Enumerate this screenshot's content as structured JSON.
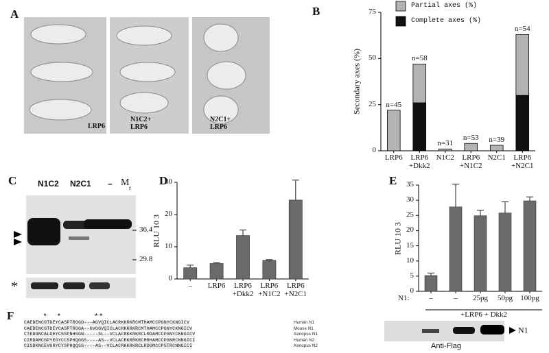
{
  "panel_letters": [
    "A",
    "B",
    "C",
    "D",
    "E",
    "F"
  ],
  "panel_a": {
    "labels": [
      "LRP6",
      "N1C2+\nLRP6",
      "N2C1+\nLRP6"
    ]
  },
  "panel_c": {
    "lanes": [
      "N1C2",
      "N2C1",
      "–"
    ],
    "marker_label": "M",
    "marker_subscript": "r",
    "markers": [
      "36.4",
      "29.8"
    ],
    "loading_label": "*"
  },
  "panel_f": {
    "asterisks": "    *  *       **",
    "rows": [
      {
        "seq": "CAEDENCGTDEYCASPTRGGD---AGVQICLACRKKRKRCMTHAMCCPGNYCKNGICV",
        "name": "Human N1"
      },
      {
        "seq": "CAEDENCGTDEYCASPTRGGA--GVGGVQICLACRKKRKRCMTHAMCCPGNYCKNGICV",
        "name": "Mouse N1"
      },
      {
        "seq": "CTEDDNCALDEYCSSPNHSGN-----SL--VCLACRKKRKRCLRDAMCCPGNYCKNGICV",
        "name": "Xenopus N1"
      },
      {
        "seq": "CIRDAMCGPYEGYCCSPHQGGS----AS--VCLACRKRRKRCMRHAMCCPGNRCNNGICI",
        "name": "Human N2"
      },
      {
        "seq": "CISDKNCEVGRYCYSPHQQSS----AS--VCLACRKKRKRCLRDGMCCPSTRCNNGICI",
        "name": "Xenopus N2"
      }
    ],
    "blot_label": "Anti-Flag",
    "band_label": "N1"
  },
  "chart_data": [
    {
      "type": "stacked-bar",
      "ylabel": "Secondary axes (%)",
      "categories": [
        "LRP6",
        "LRP6\n+Dkk2",
        "N1C2",
        "LRP6\n+N1C2",
        "N2C1",
        "LRP6\n+N2C1"
      ],
      "series": [
        {
          "name": "Complete axes (%)",
          "color": "#111111",
          "values": [
            0,
            26,
            0,
            0,
            0,
            30
          ]
        },
        {
          "name": "Partial axes (%)",
          "color": "#b3b3b3",
          "values": [
            22,
            21,
            1,
            4,
            3,
            33
          ]
        }
      ],
      "annotations": [
        "n=45",
        "n=58",
        "n=31",
        "n=53",
        "n=39",
        "n=54"
      ],
      "ylim": [
        0,
        75
      ],
      "yticks": [
        0,
        25,
        50,
        75
      ]
    },
    {
      "type": "bar",
      "ylabel": "RLU 10 3",
      "categories": [
        "–",
        "LRP6",
        "LRP6\n+Dkk2",
        "LRP6\n+N1C2",
        "LRP6\n+N2C1"
      ],
      "values": [
        3.5,
        4.8,
        13.5,
        5.8,
        24.5
      ],
      "errors": [
        0.8,
        0.3,
        1.7,
        0.2,
        6.2
      ],
      "color": "#6a6a6a",
      "ylim": [
        0,
        30
      ],
      "yticks": [
        0,
        10,
        20,
        30
      ]
    },
    {
      "type": "bar",
      "ylabel": "RLU 10 3",
      "categories": [
        "–",
        "–",
        "25pg",
        "50pg",
        "100pg"
      ],
      "values": [
        5.2,
        27.8,
        24.9,
        25.8,
        29.8
      ],
      "errors": [
        0.8,
        7.5,
        1.8,
        3.7,
        1.3
      ],
      "color": "#6a6a6a",
      "ylim": [
        0,
        35
      ],
      "yticks": [
        0,
        5,
        10,
        15,
        20,
        25,
        30,
        35
      ],
      "group_label": "N1:",
      "bracket_label": "+LRP6 + Dkk2"
    }
  ]
}
